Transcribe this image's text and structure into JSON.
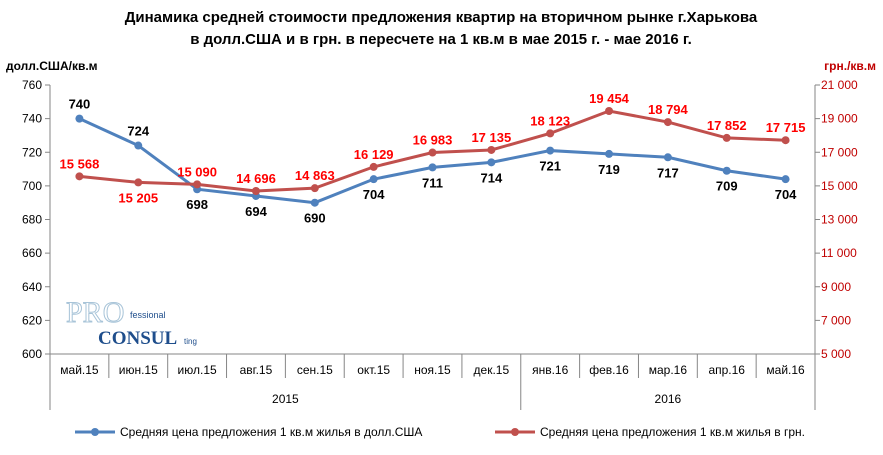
{
  "chart_data": {
    "type": "line",
    "title": [
      "Динамика средней стоимости предложения квартир на вторичном рынке г.Харькова",
      "в долл.США и в грн. в пересчете на 1 кв.м в мае 2015 г. - мае 2016 г."
    ],
    "ylabel_left": "долл.США/кв.м",
    "ylabel_right": "грн./кв.м",
    "categories": [
      "май.15",
      "июн.15",
      "июл.15",
      "авг.15",
      "сен.15",
      "окт.15",
      "ноя.15",
      "дек.15",
      "янв.16",
      "фев.16",
      "мар.16",
      "апр.16",
      "май.16"
    ],
    "year_groups": [
      {
        "label": "2015",
        "count": 8
      },
      {
        "label": "2016",
        "count": 5
      }
    ],
    "ylim_left": [
      600,
      760
    ],
    "yticks_left": [
      "600",
      "620",
      "640",
      "660",
      "680",
      "700",
      "720",
      "740",
      "760"
    ],
    "ylim_right": [
      5000,
      21000
    ],
    "yticks_right": [
      "5 000",
      "7 000",
      "9 000",
      "11 000",
      "13 000",
      "15 000",
      "17 000",
      "19 000",
      "21 000"
    ],
    "series": [
      {
        "name": "Средняя цена предложения 1 кв.м жилья в долл.США",
        "axis": "left",
        "color": "#4f81bd",
        "label_color": "#000000",
        "values": [
          740,
          724,
          698,
          694,
          690,
          704,
          711,
          714,
          721,
          719,
          717,
          709,
          704
        ],
        "labels": [
          "740",
          "724",
          "698",
          "694",
          "690",
          "704",
          "711",
          "714",
          "721",
          "719",
          "717",
          "709",
          "704"
        ]
      },
      {
        "name": "Средняя цена предложения 1 кв.м жилья в грн.",
        "axis": "right",
        "color": "#c0504d",
        "label_color": "#ff0000",
        "values": [
          15568,
          15205,
          15090,
          14696,
          14863,
          16129,
          16983,
          17135,
          18123,
          19454,
          18794,
          17852,
          17715
        ],
        "labels": [
          "15 568",
          "15 205",
          "15 090",
          "14 696",
          "14 863",
          "16 129",
          "16 983",
          "17 135",
          "18 123",
          "19 454",
          "18 794",
          "17 852",
          "17 715"
        ]
      }
    ],
    "grid": false,
    "legend_position": "bottom",
    "logo_text": "PROfessional CONSULting"
  }
}
